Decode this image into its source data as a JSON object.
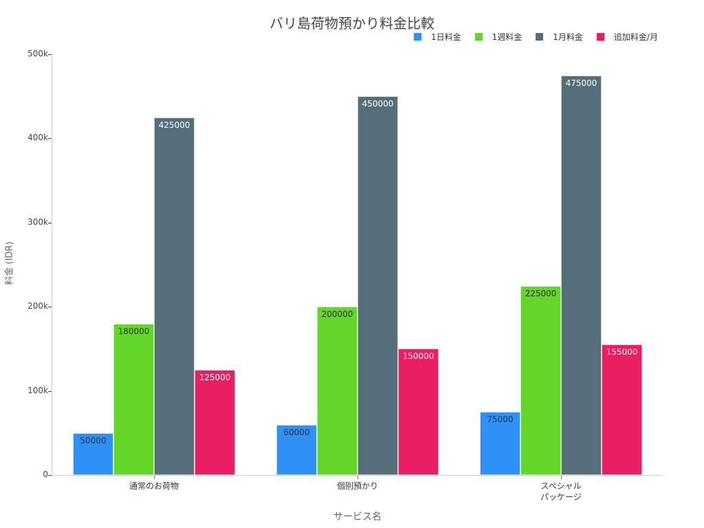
{
  "chart_data": {
    "type": "bar",
    "title": "バリ島荷物預かり料金比較",
    "xlabel": "サービス名",
    "ylabel": "料金 (IDR)",
    "categories": [
      "通常のお荷物",
      "個別預かり",
      "スペシャル\nパッケージ"
    ],
    "series": [
      {
        "name": "1日料金",
        "color": "#2e91f7",
        "label_color": "#333333",
        "values": [
          50000,
          60000,
          75000
        ]
      },
      {
        "name": "1週料金",
        "color": "#63d62a",
        "label_color": "#333333",
        "values": [
          180000,
          200000,
          225000
        ]
      },
      {
        "name": "1月料金",
        "color": "#546e7a",
        "label_color": "#ffffff",
        "values": [
          425000,
          450000,
          475000
        ]
      },
      {
        "name": "追加料金/月",
        "color": "#e91e63",
        "label_color": "#ffffff",
        "values": [
          125000,
          150000,
          155000
        ]
      }
    ],
    "ylim": [
      0,
      500000
    ],
    "yticks": [
      "0",
      "100k",
      "200k",
      "300k",
      "400k",
      "500k"
    ],
    "grid": false,
    "legend_position": "top-right"
  }
}
